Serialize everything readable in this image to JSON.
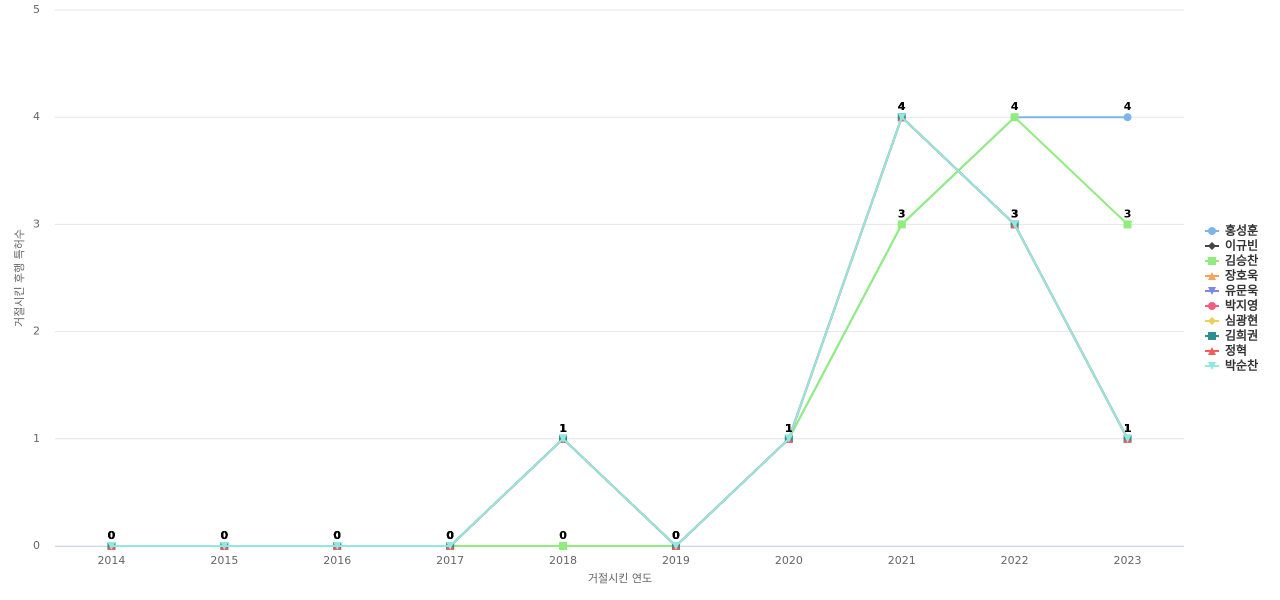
{
  "chart_data": {
    "type": "line",
    "x_label": "거절시킨 연도",
    "y_label": "거절시킨 후행 특허수",
    "categories": [
      "2014",
      "2015",
      "2016",
      "2017",
      "2018",
      "2019",
      "2020",
      "2021",
      "2022",
      "2023"
    ],
    "ylim": [
      0,
      5
    ],
    "yticks": [
      0,
      1,
      2,
      3,
      4,
      5
    ],
    "grid": true,
    "legend": "right",
    "series": [
      {
        "name": "홍성훈",
        "color": "#7cb5ec",
        "symbol": "circle",
        "values": [
          0,
          0,
          0,
          0,
          0,
          0,
          1,
          3,
          4,
          4
        ]
      },
      {
        "name": "이규빈",
        "color": "#434348",
        "symbol": "diamond",
        "values": [
          0,
          0,
          0,
          0,
          1,
          0,
          1,
          4,
          3,
          1
        ]
      },
      {
        "name": "김승찬",
        "color": "#90ed7d",
        "symbol": "square",
        "values": [
          0,
          0,
          0,
          0,
          0,
          0,
          1,
          3,
          4,
          3
        ]
      },
      {
        "name": "장호욱",
        "color": "#f7a35c",
        "symbol": "triangle",
        "values": [
          0,
          0,
          0,
          0,
          1,
          0,
          1,
          4,
          3,
          1
        ]
      },
      {
        "name": "유문욱",
        "color": "#8085e9",
        "symbol": "triangle-down",
        "values": [
          0,
          0,
          0,
          0,
          1,
          0,
          1,
          4,
          3,
          1
        ]
      },
      {
        "name": "박지영",
        "color": "#f15c80",
        "symbol": "circle",
        "values": [
          0,
          0,
          0,
          0,
          1,
          0,
          1,
          4,
          3,
          1
        ]
      },
      {
        "name": "심광현",
        "color": "#e4d354",
        "symbol": "diamond",
        "values": [
          0,
          0,
          0,
          0,
          1,
          0,
          1,
          4,
          3,
          1
        ]
      },
      {
        "name": "김희권",
        "color": "#2b908f",
        "symbol": "square",
        "values": [
          0,
          0,
          0,
          0,
          1,
          0,
          1,
          4,
          3,
          1
        ]
      },
      {
        "name": "정혁",
        "color": "#f45b5b",
        "symbol": "triangle",
        "values": [
          0,
          0,
          0,
          0,
          1,
          0,
          1,
          4,
          3,
          1
        ]
      },
      {
        "name": "박순찬",
        "color": "#91e8e1",
        "symbol": "triangle-down",
        "values": [
          0,
          0,
          0,
          0,
          1,
          0,
          1,
          4,
          3,
          1
        ]
      }
    ]
  }
}
